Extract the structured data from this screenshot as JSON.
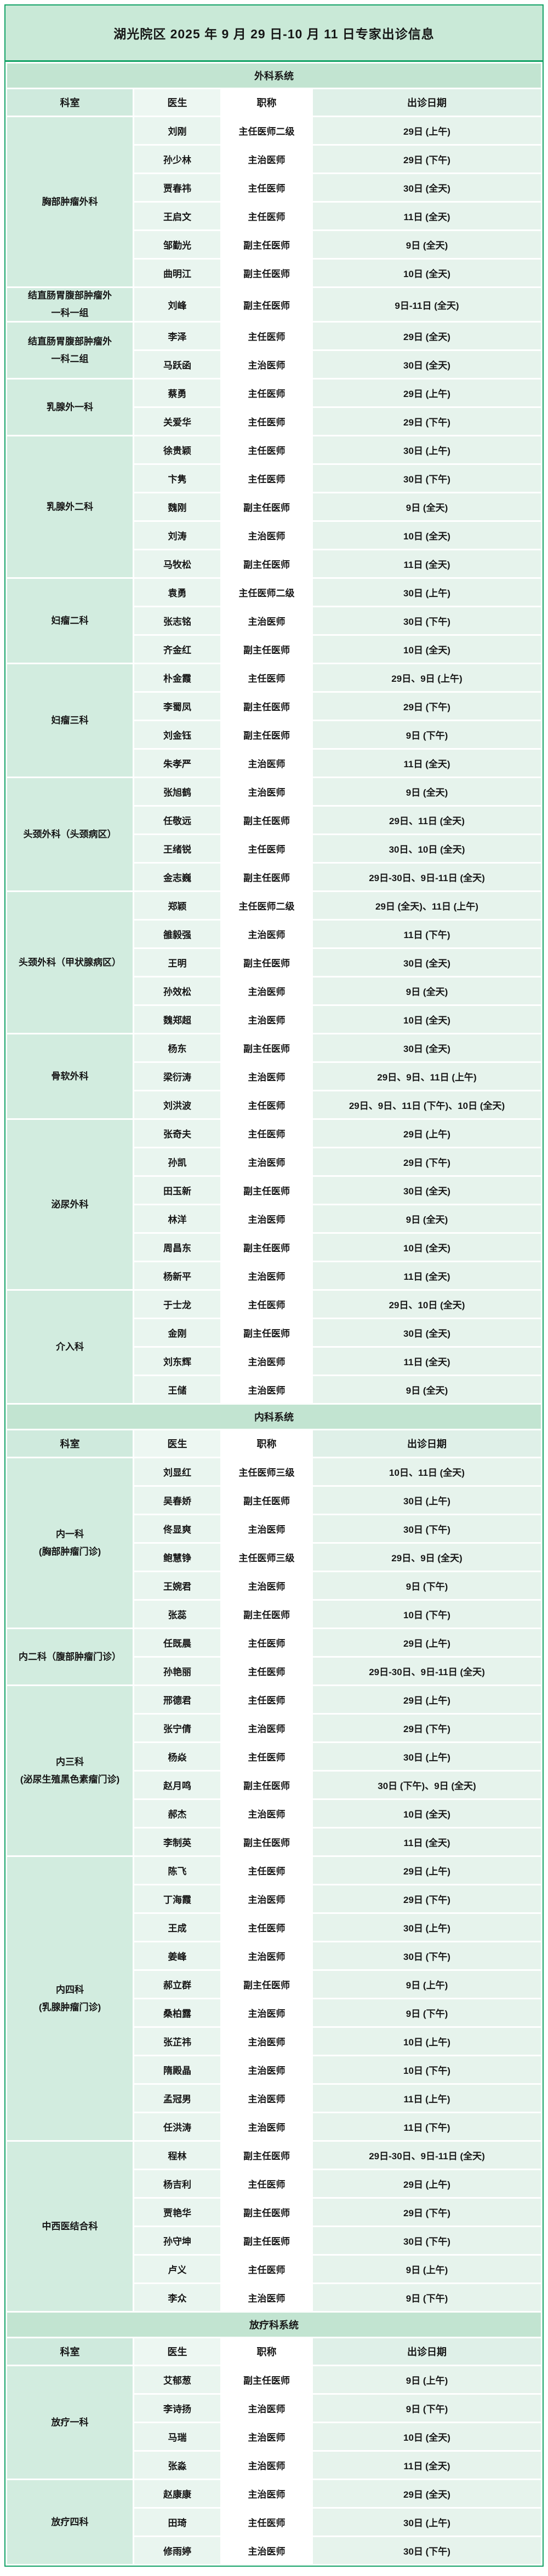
{
  "title": "湖光院区 2025 年 9 月 29 日-10 月 11 日专家出诊信息",
  "columns": [
    "科室",
    "医生",
    "职称",
    "出诊日期"
  ],
  "colors": {
    "accent_green": "#13a266",
    "title_bg": "#c9e9d7",
    "section_header_bg": "#c2e4d1",
    "department_col_bg": "#d2ecdf",
    "doctor_col_bg": "#e9f5ef",
    "rank_col_bg": "#ffffff",
    "dates_col_bg": "#e6f3ec"
  },
  "sections": [
    {
      "name": "外科系统",
      "departments": [
        {
          "name": "胸部肿瘤外科",
          "name2": "",
          "doctors": [
            {
              "name": "刘刚",
              "title": "主任医师二级",
              "dates": "29日 (上午)"
            },
            {
              "name": "孙少林",
              "title": "主治医师",
              "dates": "29日 (下午)"
            },
            {
              "name": "贾春祎",
              "title": "主任医师",
              "dates": "30日 (全天)"
            },
            {
              "name": "王启文",
              "title": "主任医师",
              "dates": "11日 (全天)"
            },
            {
              "name": "邹勤光",
              "title": "副主任医师",
              "dates": "9日 (全天)"
            },
            {
              "name": "曲明江",
              "title": "副主任医师",
              "dates": "10日 (全天)"
            }
          ]
        },
        {
          "name": "结直肠胃腹部肿瘤外",
          "name2": "一科一组",
          "doctors": [
            {
              "name": "刘峰",
              "title": "副主任医师",
              "dates": "9日-11日 (全天)"
            }
          ]
        },
        {
          "name": "结直肠胃腹部肿瘤外",
          "name2": "一科二组",
          "doctors": [
            {
              "name": "李泽",
              "title": "主任医师",
              "dates": "29日 (全天)"
            },
            {
              "name": "马跃函",
              "title": "主治医师",
              "dates": "30日 (全天)"
            }
          ]
        },
        {
          "name": "乳腺外一科",
          "name2": "",
          "doctors": [
            {
              "name": "蔡勇",
              "title": "主任医师",
              "dates": "29日 (上午)"
            },
            {
              "name": "关爱华",
              "title": "主任医师",
              "dates": "29日 (下午)"
            }
          ]
        },
        {
          "name": "乳腺外二科",
          "name2": "",
          "doctors": [
            {
              "name": "徐贵颖",
              "title": "主任医师",
              "dates": "30日 (上午)"
            },
            {
              "name": "卞隽",
              "title": "主任医师",
              "dates": "30日 (下午)"
            },
            {
              "name": "魏刚",
              "title": "副主任医师",
              "dates": "9日 (全天)"
            },
            {
              "name": "刘涛",
              "title": "主治医师",
              "dates": "10日 (全天)"
            },
            {
              "name": "马牧松",
              "title": "副主任医师",
              "dates": "11日 (全天)"
            }
          ]
        },
        {
          "name": "妇瘤二科",
          "name2": "",
          "doctors": [
            {
              "name": "袁勇",
              "title": "主任医师二级",
              "dates": "30日 (上午)"
            },
            {
              "name": "张志铭",
              "title": "主治医师",
              "dates": "30日 (下午)"
            },
            {
              "name": "齐金红",
              "title": "副主任医师",
              "dates": "10日 (全天)"
            }
          ]
        },
        {
          "name": "妇瘤三科",
          "name2": "",
          "doctors": [
            {
              "name": "朴金霞",
              "title": "主任医师",
              "dates": "29日、9日 (上午)"
            },
            {
              "name": "李蜀凤",
              "title": "副主任医师",
              "dates": "29日 (下午)"
            },
            {
              "name": "刘金钰",
              "title": "副主任医师",
              "dates": "9日 (下午)"
            },
            {
              "name": "朱孝严",
              "title": "主治医师",
              "dates": "11日 (全天)"
            }
          ]
        },
        {
          "name": "头颈外科（头颈病区）",
          "name2": "",
          "doctors": [
            {
              "name": "张旭鹤",
              "title": "主治医师",
              "dates": "9日 (全天)"
            },
            {
              "name": "任敬远",
              "title": "副主任医师",
              "dates": "29日、11日 (全天)"
            },
            {
              "name": "王绪锐",
              "title": "主任医师",
              "dates": "30日、10日 (全天)"
            },
            {
              "name": "金志巍",
              "title": "副主任医师",
              "dates": "29日-30日、9日-11日 (全天)"
            }
          ]
        },
        {
          "name": "头颈外科（甲状腺病区）",
          "name2": "",
          "doctors": [
            {
              "name": "郑颖",
              "title": "主任医师二级",
              "dates": "29日 (全天)、11日 (上午)"
            },
            {
              "name": "雒毅强",
              "title": "主治医师",
              "dates": "11日 (下午)"
            },
            {
              "name": "王明",
              "title": "副主任医师",
              "dates": "30日 (全天)"
            },
            {
              "name": "孙效松",
              "title": "主治医师",
              "dates": "9日 (全天)"
            },
            {
              "name": "魏郑超",
              "title": "主治医师",
              "dates": "10日 (全天)"
            }
          ]
        },
        {
          "name": "骨软外科",
          "name2": "",
          "doctors": [
            {
              "name": "杨东",
              "title": "副主任医师",
              "dates": "30日 (全天)"
            },
            {
              "name": "梁衍涛",
              "title": "主治医师",
              "dates": "29日、9日、11日 (上午)"
            },
            {
              "name": "刘洪波",
              "title": "主任医师",
              "dates": "29日、9日、11日 (下午)、10日 (全天)"
            }
          ]
        },
        {
          "name": "泌尿外科",
          "name2": "",
          "doctors": [
            {
              "name": "张奇夫",
              "title": "主任医师",
              "dates": "29日 (上午)"
            },
            {
              "name": "孙凯",
              "title": "主治医师",
              "dates": "29日 (下午)"
            },
            {
              "name": "田玉新",
              "title": "副主任医师",
              "dates": "30日 (全天)"
            },
            {
              "name": "林洋",
              "title": "主治医师",
              "dates": "9日 (全天)"
            },
            {
              "name": "周昌东",
              "title": "副主任医师",
              "dates": "10日 (全天)"
            },
            {
              "name": "杨新平",
              "title": "主治医师",
              "dates": "11日 (全天)"
            }
          ]
        },
        {
          "name": "介入科",
          "name2": "",
          "doctors": [
            {
              "name": "于士龙",
              "title": "主任医师",
              "dates": "29日、10日 (全天)"
            },
            {
              "name": "金刚",
              "title": "副主任医师",
              "dates": "30日 (全天)"
            },
            {
              "name": "刘东辉",
              "title": "主治医师",
              "dates": "11日 (全天)"
            },
            {
              "name": "王储",
              "title": "主治医师",
              "dates": "9日 (全天)"
            }
          ]
        }
      ]
    },
    {
      "name": "内科系统",
      "departments": [
        {
          "name": "内一科",
          "name2": "(胸部肿瘤门诊)",
          "doctors": [
            {
              "name": "刘显红",
              "title": "主任医师三级",
              "dates": "10日、11日 (全天)"
            },
            {
              "name": "吴春娇",
              "title": "副主任医师",
              "dates": "30日 (上午)"
            },
            {
              "name": "佟显爽",
              "title": "主治医师",
              "dates": "30日 (下午)"
            },
            {
              "name": "鲍慧铮",
              "title": "主任医师三级",
              "dates": "29日、9日 (全天)"
            },
            {
              "name": "王婉君",
              "title": "主治医师",
              "dates": "9日 (下午)"
            },
            {
              "name": "张蕊",
              "title": "副主任医师",
              "dates": "10日 (下午)"
            }
          ]
        },
        {
          "name": "内二科（腹部肿瘤门诊）",
          "name2": "",
          "doctors": [
            {
              "name": "任既晨",
              "title": "主任医师",
              "dates": "29日 (上午)"
            },
            {
              "name": "孙艳丽",
              "title": "主任医师",
              "dates": "29日-30日、9日-11日 (全天)"
            }
          ]
        },
        {
          "name": "内三科",
          "name2": "(泌尿生殖黑色素瘤门诊)",
          "doctors": [
            {
              "name": "邢德君",
              "title": "主任医师",
              "dates": "29日 (上午)"
            },
            {
              "name": "张宁倩",
              "title": "主治医师",
              "dates": "29日 (下午)"
            },
            {
              "name": "杨焱",
              "title": "主任医师",
              "dates": "30日 (上午)"
            },
            {
              "name": "赵月鸣",
              "title": "副主任医师",
              "dates": "30日 (下午)、9日 (全天)"
            },
            {
              "name": "郝杰",
              "title": "主治医师",
              "dates": "10日 (全天)"
            },
            {
              "name": "李制英",
              "title": "副主任医师",
              "dates": "11日 (全天)"
            }
          ]
        },
        {
          "name": "内四科",
          "name2": "(乳腺肿瘤门诊)",
          "doctors": [
            {
              "name": "陈飞",
              "title": "主任医师",
              "dates": "29日 (上午)"
            },
            {
              "name": "丁海霞",
              "title": "主治医师",
              "dates": "29日 (下午)"
            },
            {
              "name": "王成",
              "title": "主任医师",
              "dates": "30日 (上午)"
            },
            {
              "name": "姜峰",
              "title": "主治医师",
              "dates": "30日 (下午)"
            },
            {
              "name": "郝立群",
              "title": "副主任医师",
              "dates": "9日 (上午)"
            },
            {
              "name": "桑柏露",
              "title": "主治医师",
              "dates": "9日 (下午)"
            },
            {
              "name": "张芷祎",
              "title": "主治医师",
              "dates": "10日 (上午)"
            },
            {
              "name": "隋殿晶",
              "title": "主治医师",
              "dates": "10日 (下午)"
            },
            {
              "name": "孟冠男",
              "title": "主治医师",
              "dates": "11日 (上午)"
            },
            {
              "name": "任洪涛",
              "title": "主治医师",
              "dates": "11日 (下午)"
            }
          ]
        },
        {
          "name": "中西医结合科",
          "name2": "",
          "doctors": [
            {
              "name": "程林",
              "title": "副主任医师",
              "dates": "29日-30日、9日-11日 (全天)"
            },
            {
              "name": "杨吉利",
              "title": "主任医师",
              "dates": "29日 (上午)"
            },
            {
              "name": "贾艳华",
              "title": "副主任医师",
              "dates": "29日 (下午)"
            },
            {
              "name": "孙守坤",
              "title": "副主任医师",
              "dates": "30日 (下午)"
            },
            {
              "name": "卢义",
              "title": "主任医师",
              "dates": "9日 (上午)"
            },
            {
              "name": "李众",
              "title": "主治医师",
              "dates": "9日 (下午)"
            }
          ]
        }
      ]
    },
    {
      "name": "放疗科系统",
      "departments": [
        {
          "name": "放疗一科",
          "name2": "",
          "doctors": [
            {
              "name": "艾郁葱",
              "title": "副主任医师",
              "dates": "9日 (上午)"
            },
            {
              "name": "李诗扬",
              "title": "主治医师",
              "dates": "9日 (下午)"
            },
            {
              "name": "马瑞",
              "title": "主治医师",
              "dates": "10日 (全天)"
            },
            {
              "name": "张淼",
              "title": "主治医师",
              "dates": "11日 (全天)"
            }
          ]
        },
        {
          "name": "放疗四科",
          "name2": "",
          "doctors": [
            {
              "name": "赵康康",
              "title": "主治医师",
              "dates": "29日 (全天)"
            },
            {
              "name": "田琦",
              "title": "主任医师",
              "dates": "30日 (上午)"
            },
            {
              "name": "修雨婷",
              "title": "主治医师",
              "dates": "30日 (下午)"
            }
          ]
        }
      ]
    }
  ]
}
